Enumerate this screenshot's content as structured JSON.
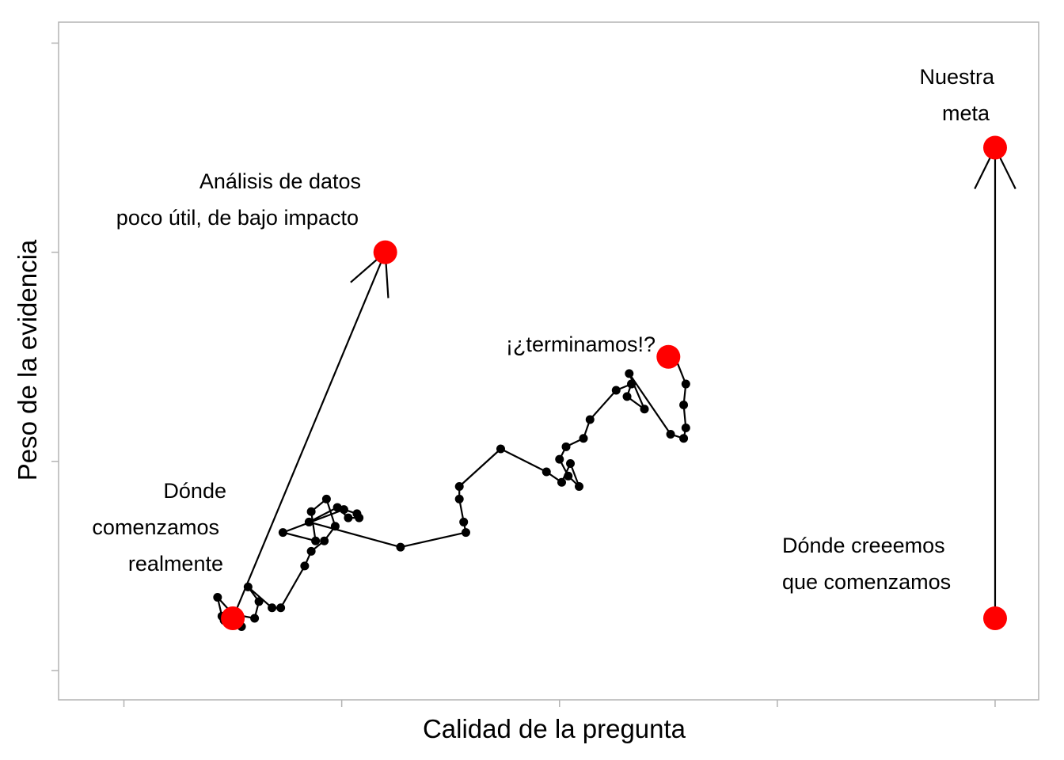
{
  "chart_data": {
    "type": "scatter",
    "xlabel": "Calidad de la pregunta",
    "ylabel": "Peso de la evidencia",
    "xlim": [
      0.7,
      5.2
    ],
    "ylim": [
      0.86,
      4.1
    ],
    "x_ticks": [
      1,
      2,
      3,
      4,
      5
    ],
    "y_ticks": [
      1,
      2,
      3,
      4
    ],
    "tick_labels_shown": false,
    "grid": false,
    "legend": "none",
    "colors": {
      "line": "#000000",
      "point": "#000000",
      "highlight": "#ff0000",
      "frame": "#b3b3b3"
    },
    "series": [
      {
        "points": [
          [
            1.46,
            1.24
          ],
          [
            1.54,
            1.21
          ],
          [
            1.45,
            1.26
          ],
          [
            1.43,
            1.35
          ],
          [
            1.5,
            1.27
          ],
          [
            1.6,
            1.25
          ],
          [
            1.62,
            1.33
          ],
          [
            1.57,
            1.4
          ],
          [
            1.68,
            1.3
          ],
          [
            1.72,
            1.3
          ],
          [
            1.83,
            1.5
          ],
          [
            1.86,
            1.57
          ],
          [
            1.92,
            1.62
          ],
          [
            1.97,
            1.69
          ],
          [
            1.93,
            1.82
          ],
          [
            1.86,
            1.76
          ],
          [
            1.88,
            1.62
          ],
          [
            1.73,
            1.66
          ],
          [
            2.01,
            1.77
          ],
          [
            2.07,
            1.75
          ],
          [
            2.08,
            1.73
          ],
          [
            2.03,
            1.73
          ],
          [
            1.98,
            1.78
          ],
          [
            1.85,
            1.71
          ],
          [
            2.27,
            1.59
          ],
          [
            2.57,
            1.66
          ],
          [
            2.56,
            1.71
          ],
          [
            2.54,
            1.82
          ],
          [
            2.54,
            1.88
          ],
          [
            2.73,
            2.06
          ],
          [
            2.94,
            1.95
          ],
          [
            3.01,
            1.9
          ],
          [
            3.05,
            1.99
          ],
          [
            3.09,
            1.88
          ],
          [
            3.04,
            1.93
          ],
          [
            3.0,
            2.01
          ],
          [
            3.03,
            2.07
          ],
          [
            3.11,
            2.11
          ],
          [
            3.14,
            2.2
          ],
          [
            3.26,
            2.34
          ],
          [
            3.33,
            2.37
          ],
          [
            3.31,
            2.31
          ],
          [
            3.39,
            2.25
          ],
          [
            3.32,
            2.42
          ],
          [
            3.51,
            2.13
          ],
          [
            3.57,
            2.11
          ],
          [
            3.58,
            2.16
          ],
          [
            3.57,
            2.27
          ],
          [
            3.58,
            2.37
          ],
          [
            3.53,
            2.5
          ]
        ]
      }
    ],
    "highlight_points": [
      {
        "id": "start_real",
        "x": 1.5,
        "y": 1.25
      },
      {
        "id": "low_impact",
        "x": 2.2,
        "y": 3.0
      },
      {
        "id": "finished",
        "x": 3.5,
        "y": 2.5
      },
      {
        "id": "believed_start",
        "x": 5.0,
        "y": 1.25
      },
      {
        "id": "goal",
        "x": 5.0,
        "y": 3.5
      }
    ],
    "arrows": [
      {
        "from": "start_real",
        "to": "low_impact"
      },
      {
        "from": "believed_start",
        "to": "goal"
      }
    ],
    "annotations": [
      {
        "id": "start_real",
        "lines": [
          "Dónde",
          "comenzamos",
          "realmente"
        ]
      },
      {
        "id": "low_impact",
        "lines": [
          "Análisis de datos",
          "poco útil, de bajo impacto"
        ]
      },
      {
        "id": "finished",
        "lines": [
          "¡¿terminamos!?"
        ]
      },
      {
        "id": "believed_start",
        "lines": [
          "Dónde creeemos",
          "que comenzamos"
        ]
      },
      {
        "id": "goal",
        "lines": [
          "Nuestra",
          "meta"
        ]
      }
    ]
  }
}
